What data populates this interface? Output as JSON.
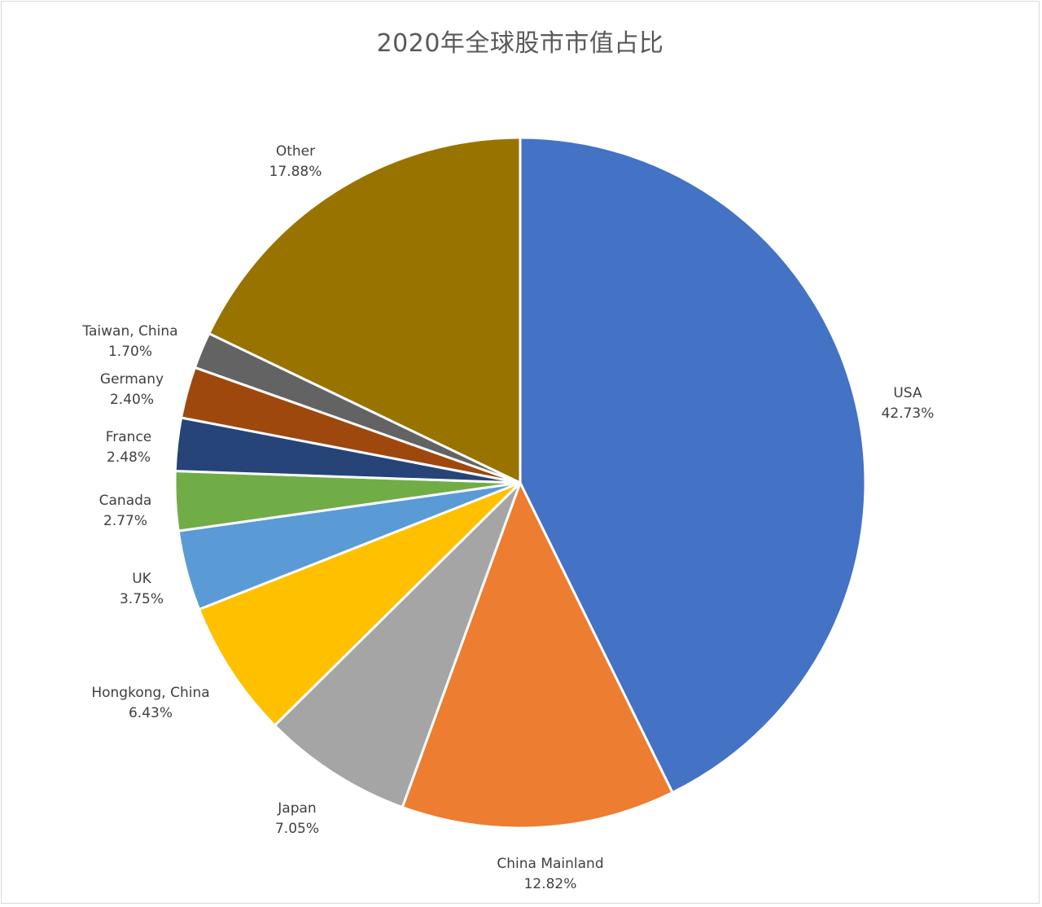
{
  "chart_data": {
    "type": "pie",
    "title": "2020年全球股市市值占比",
    "start_angle_deg": 0,
    "direction": "clockwise",
    "slices": [
      {
        "label": "USA",
        "value": 42.73,
        "display": "42.73%",
        "color": "#4472C4"
      },
      {
        "label": "China Mainland",
        "value": 12.82,
        "display": "12.82%",
        "color": "#ED7D31"
      },
      {
        "label": "Japan",
        "value": 7.05,
        "display": "7.05%",
        "color": "#A5A5A5"
      },
      {
        "label": "Hongkong, China",
        "value": 6.43,
        "display": "6.43%",
        "color": "#FFC000"
      },
      {
        "label": "UK",
        "value": 3.75,
        "display": "3.75%",
        "color": "#5B9BD5"
      },
      {
        "label": "Canada",
        "value": 2.77,
        "display": "2.77%",
        "color": "#70AD47"
      },
      {
        "label": "France",
        "value": 2.48,
        "display": "2.48%",
        "color": "#264478"
      },
      {
        "label": "Germany",
        "value": 2.4,
        "display": "2.40%",
        "color": "#9E480E"
      },
      {
        "label": "Taiwan, China",
        "value": 1.7,
        "display": "1.70%",
        "color": "#636363"
      },
      {
        "label": "Other",
        "value": 17.88,
        "display": "17.88%",
        "color": "#997300"
      }
    ],
    "legend": "none",
    "data_labels": "outside-end"
  }
}
